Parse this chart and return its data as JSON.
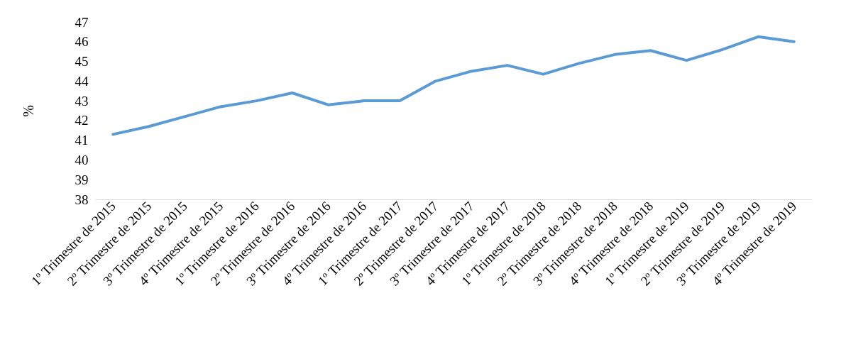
{
  "chart_data": {
    "type": "line",
    "ylabel": "%",
    "categories": [
      "1º Trimestre de 2015",
      "2º Trimestre de 2015",
      "3º Trimestre de 2015",
      "4º Trimestre de 2015",
      "1º Trimestre de 2016",
      "2º Trimestre de 2016",
      "3º Trimestre de 2016",
      "4º Trimestre de 2016",
      "1º Trimestre de 2017",
      "2º Trimestre de 2017",
      "3º Trimestre de 2017",
      "4º Trimestre de 2017",
      "1º Trimestre de 2018",
      "2º Trimestre de 2018",
      "3º Trimestre de 2018",
      "4º Trimestre de 2018",
      "1º Trimestre de 2019",
      "2º Trimestre de 2019",
      "3º Trimestre de 2019",
      "4º Trimestre de 2019"
    ],
    "series": [
      {
        "color": "#5b9bd5",
        "values": [
          41.3,
          41.7,
          42.2,
          42.7,
          43.0,
          43.4,
          42.8,
          43.0,
          43.0,
          44.0,
          44.5,
          44.8,
          44.35,
          44.9,
          45.35,
          45.55,
          45.05,
          45.6,
          46.25,
          46.0
        ]
      }
    ],
    "ylim": [
      38,
      47
    ],
    "yticks": [
      38,
      39,
      40,
      41,
      42,
      43,
      44,
      45,
      46,
      47
    ],
    "grid": false,
    "legend": false,
    "marker": "none",
    "line_style": "solid"
  }
}
